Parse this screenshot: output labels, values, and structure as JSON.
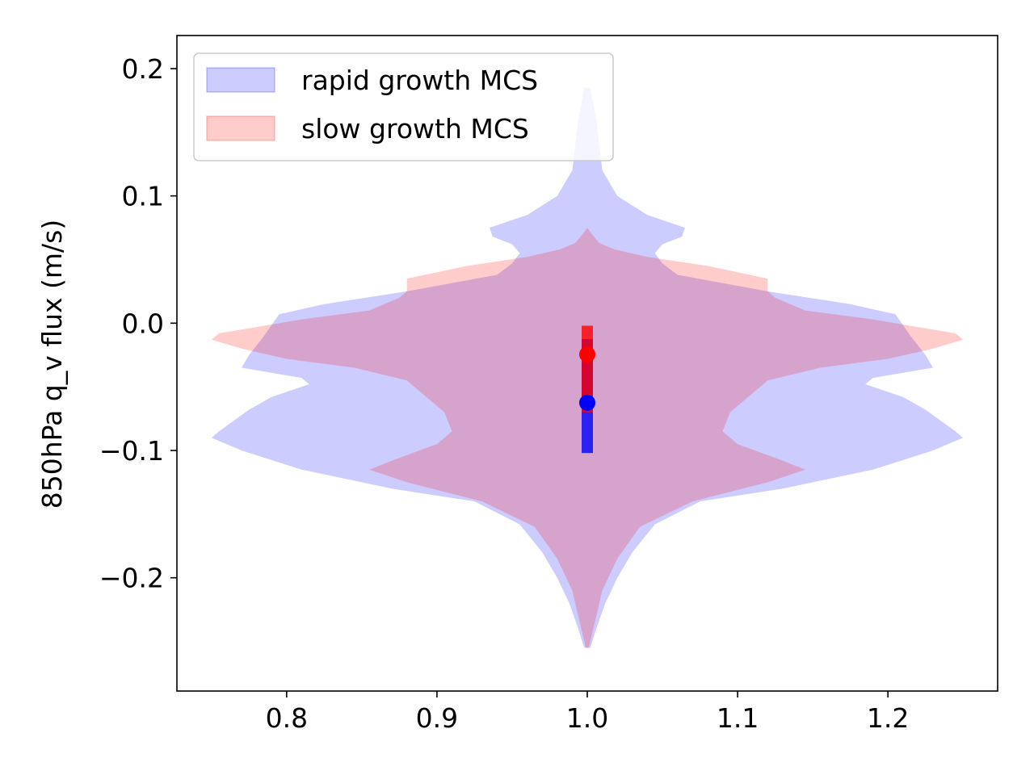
{
  "chart_data": {
    "type": "violin",
    "title": "",
    "xlabel": "",
    "ylabel": "850hPa q_v flux (m/s)",
    "xlim": [
      0.727,
      1.273
    ],
    "ylim": [
      -0.289,
      0.226
    ],
    "x_ticks": [
      0.8,
      0.9,
      1.0,
      1.1,
      1.2
    ],
    "x_tick_labels": [
      "0.8",
      "0.9",
      "1.0",
      "1.1",
      "1.2"
    ],
    "y_ticks": [
      -0.2,
      -0.1,
      0.0,
      0.1,
      0.2
    ],
    "y_tick_labels": [
      "−0.2",
      "−0.1",
      "0.0",
      "0.1",
      "0.2"
    ],
    "grid": false,
    "legend_position": "upper left",
    "violin_center": 1.0,
    "series": [
      {
        "name": "rapid growth MCS",
        "color": "#0000ff",
        "fill_opacity": 0.2,
        "profile": [
          [
            0.185,
            0.002
          ],
          [
            0.16,
            0.006
          ],
          [
            0.12,
            0.01
          ],
          [
            0.1,
            0.02
          ],
          [
            0.085,
            0.04
          ],
          [
            0.075,
            0.065
          ],
          [
            0.068,
            0.063
          ],
          [
            0.062,
            0.05
          ],
          [
            0.055,
            0.045
          ],
          [
            0.047,
            0.05
          ],
          [
            0.038,
            0.06
          ],
          [
            0.025,
            0.12
          ],
          [
            0.015,
            0.175
          ],
          [
            0.007,
            0.205
          ],
          [
            -0.01,
            0.215
          ],
          [
            -0.025,
            0.225
          ],
          [
            -0.035,
            0.23
          ],
          [
            -0.043,
            0.19
          ],
          [
            -0.048,
            0.185
          ],
          [
            -0.058,
            0.21
          ],
          [
            -0.068,
            0.225
          ],
          [
            -0.085,
            0.245
          ],
          [
            -0.09,
            0.25
          ],
          [
            -0.1,
            0.23
          ],
          [
            -0.115,
            0.19
          ],
          [
            -0.13,
            0.13
          ],
          [
            -0.14,
            0.075
          ],
          [
            -0.158,
            0.045
          ],
          [
            -0.18,
            0.03
          ],
          [
            -0.2,
            0.02
          ],
          [
            -0.22,
            0.012
          ],
          [
            -0.24,
            0.006
          ],
          [
            -0.255,
            0.002
          ]
        ]
      },
      {
        "name": "slow growth MCS",
        "color": "#ff0000",
        "fill_opacity": 0.2,
        "profile": [
          [
            0.075,
            0.0
          ],
          [
            0.07,
            0.003
          ],
          [
            0.063,
            0.008
          ],
          [
            0.058,
            0.018
          ],
          [
            0.052,
            0.04
          ],
          [
            0.045,
            0.08
          ],
          [
            0.035,
            0.12
          ],
          [
            0.025,
            0.12
          ],
          [
            0.02,
            0.125
          ],
          [
            0.015,
            0.135
          ],
          [
            0.01,
            0.145
          ],
          [
            0.003,
            0.19
          ],
          [
            -0.003,
            0.22
          ],
          [
            -0.008,
            0.245
          ],
          [
            -0.013,
            0.25
          ],
          [
            -0.02,
            0.23
          ],
          [
            -0.028,
            0.2
          ],
          [
            -0.035,
            0.155
          ],
          [
            -0.045,
            0.12
          ],
          [
            -0.055,
            0.11
          ],
          [
            -0.07,
            0.095
          ],
          [
            -0.085,
            0.09
          ],
          [
            -0.095,
            0.1
          ],
          [
            -0.108,
            0.13
          ],
          [
            -0.115,
            0.145
          ],
          [
            -0.125,
            0.12
          ],
          [
            -0.14,
            0.07
          ],
          [
            -0.16,
            0.035
          ],
          [
            -0.185,
            0.02
          ],
          [
            -0.21,
            0.01
          ],
          [
            -0.235,
            0.005
          ],
          [
            -0.255,
            0.001
          ]
        ]
      }
    ],
    "markers": [
      {
        "series": "rapid growth MCS",
        "color": "#0000ff",
        "mean": -0.0625,
        "err_low": -0.102,
        "err_high": -0.0125
      },
      {
        "series": "slow growth MCS",
        "color": "#ff0000",
        "mean": -0.0245,
        "err_low": -0.07,
        "err_high": -0.002
      }
    ]
  }
}
